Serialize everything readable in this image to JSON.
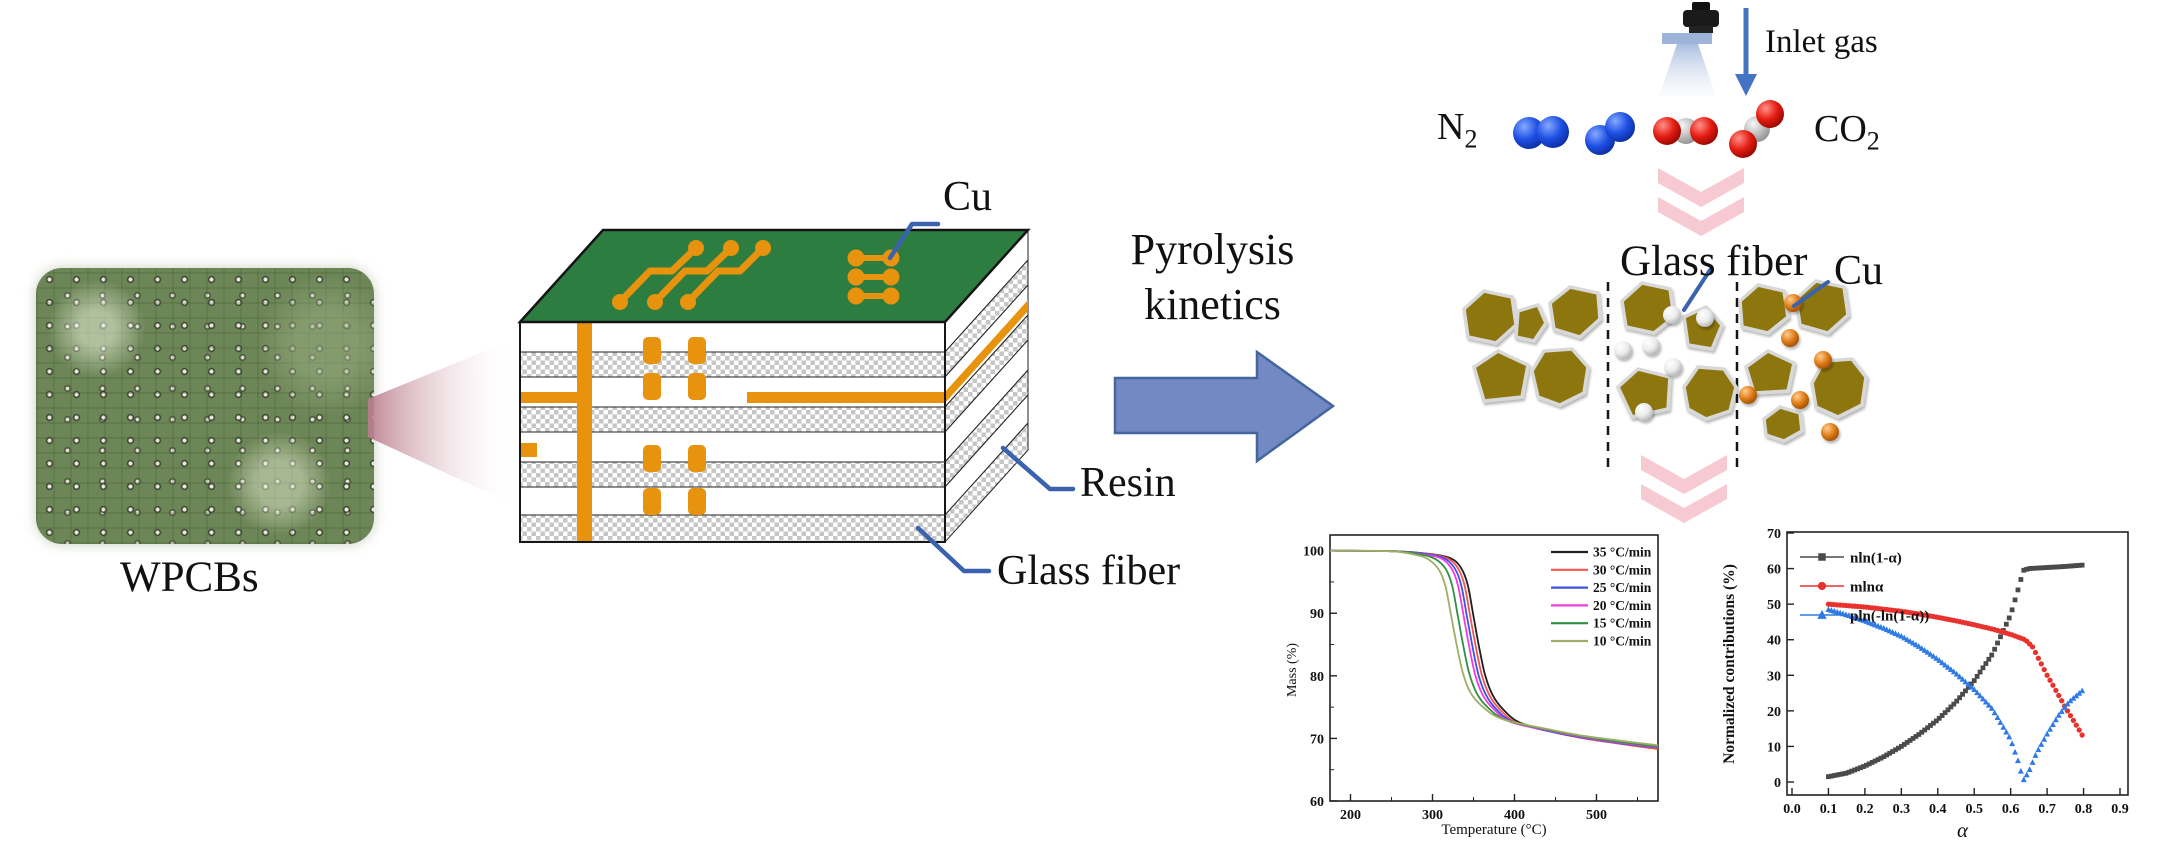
{
  "left_section": {
    "wpcb_label": "WPCBs"
  },
  "stack": {
    "cu_label": "Cu",
    "resin_label": "Resin",
    "glass_fiber_label": "Glass fiber"
  },
  "process": {
    "line1": "Pyrolysis",
    "line2": "kinetics"
  },
  "gas": {
    "inlet_label": "Inlet gas",
    "n2_main": "N",
    "n2_sub": "2",
    "co2_main": "CO",
    "co2_sub": "2"
  },
  "particles": {
    "glass_fiber_label": "Glass fiber",
    "cu_label": "Cu"
  },
  "icons": {
    "inlet_nozzle": "spray-nozzle",
    "inlet_arrow": "arrow-down",
    "process_arrow": "arrow-right",
    "step_arrow": "double-chevron-down",
    "zoom_beam": "magnify-beam"
  },
  "colors": {
    "pcb_green": "#2e7d40",
    "copper_orange": "#e8930e",
    "connector_blue": "#3a62ad",
    "process_arrow_fill": "#7289c4",
    "process_arrow_border": "#44659e",
    "inlet_arrow_blue": "#4472c4",
    "chevron_pink": "#f7c9d3",
    "particle_olive": "#8d7611"
  },
  "chart_data": [
    {
      "type": "line",
      "title": "",
      "xlabel": "Temperature (°C)",
      "ylabel": "Mass (%)",
      "xlim": [
        175,
        575
      ],
      "ylim": [
        60,
        102.5
      ],
      "xticks": [
        200,
        300,
        400,
        500
      ],
      "xminor": [
        250,
        350,
        450,
        550
      ],
      "yticks": [
        60,
        70,
        80,
        90,
        100
      ],
      "yminor": [
        65,
        75,
        85,
        95
      ],
      "grid": false,
      "legend_position": "top-right",
      "series": [
        {
          "name": "35 °C/min",
          "color": "#1f1f1f",
          "points": [
            [
              175,
              100
            ],
            [
              255,
              99.9
            ],
            [
              295,
              99.5
            ],
            [
              322,
              98.8
            ],
            [
              335,
              97.2
            ],
            [
              343,
              94.5
            ],
            [
              350,
              89.5
            ],
            [
              357,
              84.5
            ],
            [
              364,
              80.2
            ],
            [
              373,
              77
            ],
            [
              385,
              74.8
            ],
            [
              405,
              72.6
            ],
            [
              440,
              71.3
            ],
            [
              480,
              70.2
            ],
            [
              525,
              69.3
            ],
            [
              575,
              68.4
            ]
          ]
        },
        {
          "name": "30 °C/min",
          "color": "#f2544f",
          "points": [
            [
              175,
              100
            ],
            [
              255,
              99.9
            ],
            [
              293,
              99.5
            ],
            [
              318,
              98.8
            ],
            [
              331,
              97.2
            ],
            [
              339,
              94.5
            ],
            [
              346,
              89.5
            ],
            [
              353,
              84.5
            ],
            [
              360,
              80.2
            ],
            [
              369,
              77
            ],
            [
              381,
              74.8
            ],
            [
              401,
              72.6
            ],
            [
              440,
              71.2
            ],
            [
              480,
              70.1
            ],
            [
              525,
              69.2
            ],
            [
              575,
              68.3
            ]
          ]
        },
        {
          "name": "25 °C/min",
          "color": "#3f51e3",
          "points": [
            [
              175,
              100
            ],
            [
              255,
              99.9
            ],
            [
              291,
              99.5
            ],
            [
              314,
              98.8
            ],
            [
              327,
              97.2
            ],
            [
              335,
              94.5
            ],
            [
              342,
              89.5
            ],
            [
              349,
              84.5
            ],
            [
              356,
              80.2
            ],
            [
              365,
              77
            ],
            [
              377,
              74.8
            ],
            [
              397,
              72.7
            ],
            [
              440,
              71.2
            ],
            [
              480,
              70.2
            ],
            [
              525,
              69.3
            ],
            [
              575,
              68.5
            ]
          ]
        },
        {
          "name": "20 °C/min",
          "color": "#f23ce0",
          "points": [
            [
              175,
              100
            ],
            [
              255,
              99.9
            ],
            [
              289,
              99.4
            ],
            [
              310,
              98.8
            ],
            [
              323,
              97.2
            ],
            [
              331,
              94.5
            ],
            [
              338,
              89.5
            ],
            [
              345,
              84.5
            ],
            [
              352,
              80.2
            ],
            [
              361,
              77
            ],
            [
              373,
              74.9
            ],
            [
              394,
              72.7
            ],
            [
              440,
              71.3
            ],
            [
              480,
              70.3
            ],
            [
              525,
              69.4
            ],
            [
              575,
              68.6
            ]
          ]
        },
        {
          "name": "15 °C/min",
          "color": "#2f8f43",
          "points": [
            [
              175,
              100
            ],
            [
              253,
              99.9
            ],
            [
              285,
              99.4
            ],
            [
              303,
              98.7
            ],
            [
              316,
              97.1
            ],
            [
              324,
              94.4
            ],
            [
              331,
              89.5
            ],
            [
              338,
              84.5
            ],
            [
              345,
              80.3
            ],
            [
              354,
              77.2
            ],
            [
              367,
              75
            ],
            [
              390,
              72.9
            ],
            [
              440,
              71.4
            ],
            [
              480,
              70.4
            ],
            [
              525,
              69.5
            ],
            [
              575,
              68.7
            ]
          ]
        },
        {
          "name": "10 °C/min",
          "color": "#9fae66",
          "points": [
            [
              175,
              100
            ],
            [
              250,
              99.9
            ],
            [
              280,
              99.3
            ],
            [
              295,
              98.6
            ],
            [
              308,
              96.9
            ],
            [
              316,
              94.2
            ],
            [
              323,
              89.4
            ],
            [
              330,
              84.6
            ],
            [
              337,
              80.5
            ],
            [
              346,
              77.4
            ],
            [
              360,
              75.2
            ],
            [
              385,
              73.1
            ],
            [
              440,
              71.5
            ],
            [
              480,
              70.5
            ],
            [
              525,
              69.7
            ],
            [
              575,
              68.9
            ]
          ]
        }
      ]
    },
    {
      "type": "scatter",
      "title": "",
      "xlabel": "α",
      "ylabel": "Normalized contributions (%)",
      "xlim": [
        0,
        0.9
      ],
      "ylim": [
        -4,
        70.3
      ],
      "xticks": [
        0.0,
        0.1,
        0.2,
        0.3,
        0.4,
        0.5,
        0.6,
        0.7,
        0.8,
        0.9
      ],
      "yticks": [
        0,
        10,
        20,
        30,
        40,
        50,
        60,
        70
      ],
      "grid": false,
      "legend_position": "top-left",
      "series": [
        {
          "name": "nln(1-α)",
          "marker": "square",
          "color": "#4a4a4a",
          "points": [
            [
              0.1,
              1.5
            ],
            [
              0.15,
              2.5
            ],
            [
              0.2,
              4.5
            ],
            [
              0.25,
              7
            ],
            [
              0.3,
              10
            ],
            [
              0.35,
              13.5
            ],
            [
              0.4,
              17.5
            ],
            [
              0.45,
              22.5
            ],
            [
              0.5,
              28.5
            ],
            [
              0.55,
              36
            ],
            [
              0.6,
              47
            ],
            [
              0.62,
              54
            ],
            [
              0.635,
              59.5
            ],
            [
              0.65,
              60
            ],
            [
              0.7,
              60.3
            ],
            [
              0.75,
              60.6
            ],
            [
              0.8,
              61
            ]
          ]
        },
        {
          "name": "mlnα",
          "marker": "circle",
          "color": "#e8322e",
          "points": [
            [
              0.1,
              50
            ],
            [
              0.15,
              49.6
            ],
            [
              0.2,
              49.2
            ],
            [
              0.25,
              48.6
            ],
            [
              0.3,
              48
            ],
            [
              0.35,
              47.2
            ],
            [
              0.4,
              46.3
            ],
            [
              0.45,
              45.3
            ],
            [
              0.5,
              44.2
            ],
            [
              0.55,
              43
            ],
            [
              0.6,
              41.5
            ],
            [
              0.64,
              40
            ],
            [
              0.66,
              38
            ],
            [
              0.68,
              34
            ],
            [
              0.7,
              30
            ],
            [
              0.72,
              26.5
            ],
            [
              0.75,
              21
            ],
            [
              0.78,
              16
            ],
            [
              0.8,
              12.5
            ]
          ]
        },
        {
          "name": "pln(-ln(1-α))",
          "marker": "triangle",
          "color": "#2f7ae5",
          "points": [
            [
              0.1,
              48.5
            ],
            [
              0.15,
              47
            ],
            [
              0.2,
              45.3
            ],
            [
              0.25,
              43.3
            ],
            [
              0.3,
              41
            ],
            [
              0.35,
              38
            ],
            [
              0.4,
              34.5
            ],
            [
              0.45,
              30.5
            ],
            [
              0.5,
              26
            ],
            [
              0.55,
              20.5
            ],
            [
              0.6,
              12
            ],
            [
              0.62,
              6
            ],
            [
              0.635,
              0.5
            ],
            [
              0.65,
              3
            ],
            [
              0.67,
              8
            ],
            [
              0.7,
              13.5
            ],
            [
              0.73,
              18.5
            ],
            [
              0.76,
              22.5
            ],
            [
              0.8,
              26
            ]
          ]
        }
      ]
    }
  ]
}
